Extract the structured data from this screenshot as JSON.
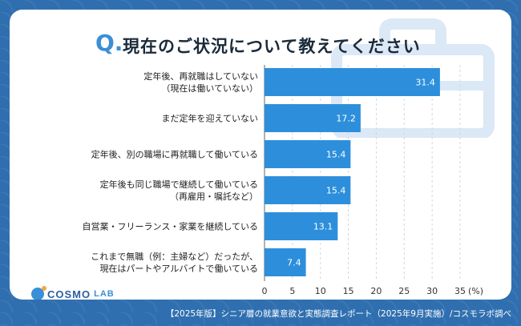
{
  "title": "現在のご状況について教えてください",
  "q_mark": "Q.",
  "logo": {
    "main": "COSMO",
    "sub": "LAB"
  },
  "footer": "【2025年版】シニア層の就業意欲と実態調査レポート（2025年9月実施）/コスモラボ調べ",
  "colors": {
    "bar": "#2d8fdb",
    "background": "#2f6fb0",
    "accent": "#3a8fd6"
  },
  "chart_data": {
    "type": "bar",
    "orientation": "horizontal",
    "categories": [
      [
        "定年後、再就職はしていない",
        "（現在は働いていない）"
      ],
      [
        "まだ定年を迎えていない"
      ],
      [
        "定年後、別の職場に再就職して働いている"
      ],
      [
        "定年後も同じ職場で継続して働いている",
        "（再雇用・嘱託など）"
      ],
      [
        "自営業・フリーランス・家業を継続している"
      ],
      [
        "これまで無職（例：主婦など）だったが、",
        "現在はパートやアルバイトで働いている"
      ]
    ],
    "values": [
      31.4,
      17.2,
      15.4,
      15.4,
      13.1,
      7.4
    ],
    "value_labels": [
      "31.4",
      "17.2",
      "15.4",
      "15.4",
      "13.1",
      "7.4"
    ],
    "xlim": [
      0,
      35
    ],
    "xticks": [
      "0",
      "5",
      "10",
      "15",
      "20",
      "25",
      "30",
      "35"
    ],
    "xunit": "(%)",
    "grid": "vertical dashed"
  }
}
